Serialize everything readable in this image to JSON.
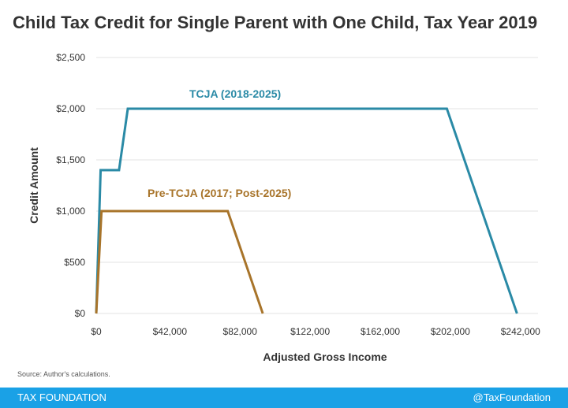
{
  "chart_data": {
    "type": "line",
    "title": "Child Tax Credit for Single Parent with One Child, Tax Year 2019",
    "xlabel": "Adjusted Gross Income",
    "ylabel": "Credit Amount",
    "xlim": [
      0,
      252000
    ],
    "ylim": [
      0,
      2500
    ],
    "x_ticks": [
      0,
      42000,
      82000,
      122000,
      162000,
      202000,
      242000
    ],
    "x_tick_labels": [
      "$0",
      "$42,000",
      "$82,000",
      "$122,000",
      "$162,000",
      "$202,000",
      "$242,000"
    ],
    "y_ticks": [
      0,
      500,
      1000,
      1500,
      2000,
      2500
    ],
    "y_tick_labels": [
      "$0",
      "$500",
      "$1,000",
      "$1,500",
      "$2,000",
      "$2,500"
    ],
    "grid": "horizontal",
    "series": [
      {
        "name": "TCJA (2018-2025)",
        "color": "#2a8aa6",
        "x": [
          0,
          2500,
          9200,
          13000,
          18000,
          200000,
          240000
        ],
        "y": [
          0,
          1400,
          1400,
          1400,
          2000,
          2000,
          0
        ]
      },
      {
        "name": "Pre-TCJA (2017; Post-2025)",
        "color": "#a8742a",
        "x": [
          0,
          3000,
          5700,
          75000,
          95000
        ],
        "y": [
          0,
          1000,
          1000,
          1000,
          0
        ]
      }
    ]
  },
  "source": "Source: Author's calculations.",
  "footer": {
    "brand": "TAX FOUNDATION",
    "handle": "@TaxFoundation"
  }
}
